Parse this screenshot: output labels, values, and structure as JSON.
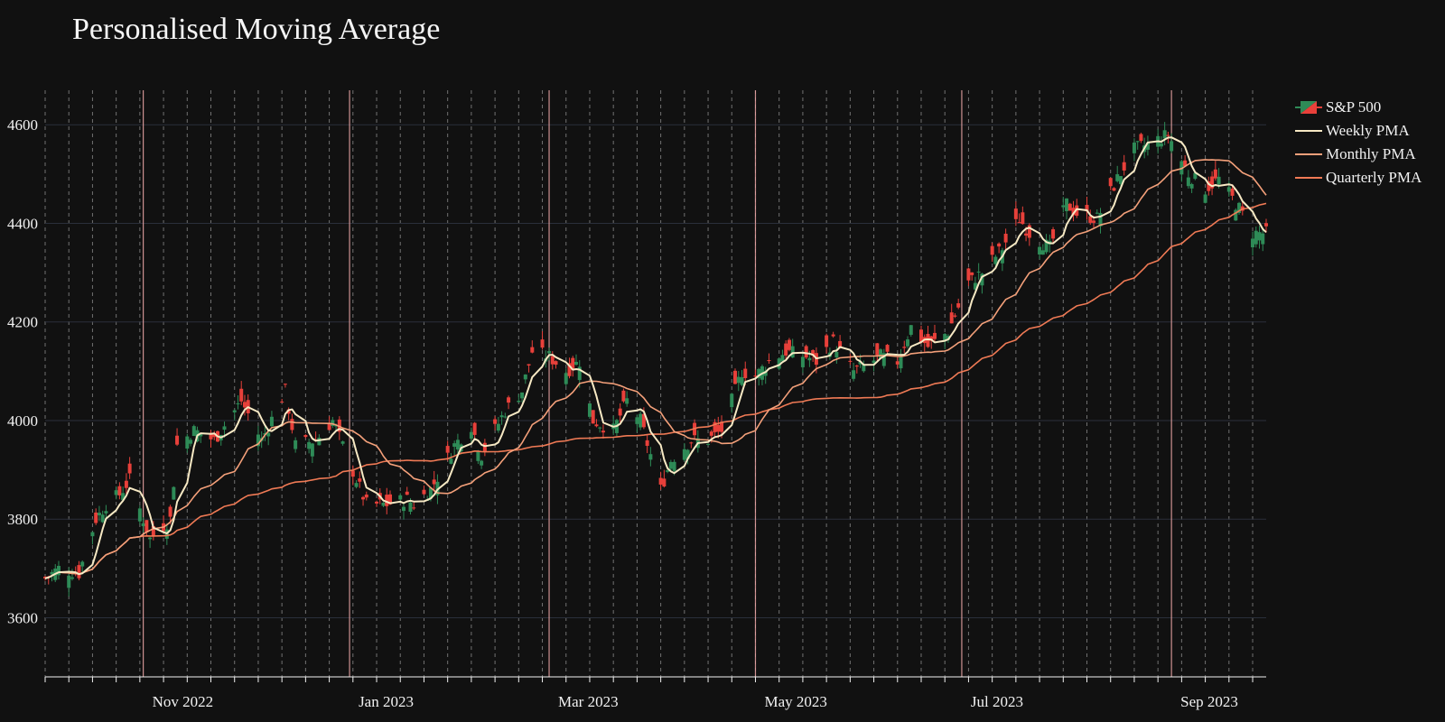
{
  "chart_data": {
    "type": "candlestick",
    "title": "Personalised Moving Average",
    "xlabel": "",
    "ylabel": "",
    "x_range": [
      "2022-10-03",
      "2023-09-29"
    ],
    "ylim": [
      3480,
      4670
    ],
    "y_ticks": [
      3600,
      3800,
      4000,
      4200,
      4400,
      4600
    ],
    "x_tick_labels": [
      "Nov 2022",
      "Jan 2023",
      "Mar 2023",
      "May 2023",
      "Jul 2023",
      "Sep 2023"
    ],
    "x_tick_dates": [
      "2022-11-01",
      "2023-01-01",
      "2023-03-01",
      "2023-05-01",
      "2023-07-01",
      "2023-09-01"
    ],
    "grid": true,
    "weekly_gridlines": "dashed, every Monday",
    "monthly_markers": "solid lines every two months",
    "legend_position": "top-right outside plot",
    "colors": {
      "background": "#111111",
      "up": "#2e8b57",
      "down": "#e8403a",
      "weekly": "#f7e9c4",
      "monthly": "#f4a07a",
      "quarterly": "#f07a55",
      "grid": "#2a2f3a",
      "month_marker": "#f0a8a8"
    },
    "series": [
      {
        "name": "S&P 500",
        "kind": "candlestick",
        "close_anchors": [
          [
            "2022-10-03",
            3680
          ],
          [
            "2022-10-07",
            3700
          ],
          [
            "2022-10-13",
            3690
          ],
          [
            "2022-10-18",
            3800
          ],
          [
            "2022-10-21",
            3830
          ],
          [
            "2022-10-25",
            3850
          ],
          [
            "2022-10-28",
            3880
          ],
          [
            "2022-11-03",
            3760
          ],
          [
            "2022-11-09",
            3800
          ],
          [
            "2022-11-11",
            3950
          ],
          [
            "2022-11-16",
            3980
          ],
          [
            "2022-11-22",
            3960
          ],
          [
            "2022-11-30",
            4040
          ],
          [
            "2022-12-06",
            3960
          ],
          [
            "2022-12-13",
            4060
          ],
          [
            "2022-12-16",
            3950
          ],
          [
            "2022-12-22",
            3960
          ],
          [
            "2022-12-27",
            4000
          ],
          [
            "2023-01-03",
            3880
          ],
          [
            "2023-01-06",
            3830
          ],
          [
            "2023-01-12",
            3830
          ],
          [
            "2023-01-18",
            3840
          ],
          [
            "2023-01-20",
            3830
          ],
          [
            "2023-01-25",
            3860
          ],
          [
            "2023-02-01",
            3950
          ],
          [
            "2023-02-06",
            3990
          ],
          [
            "2023-02-09",
            3930
          ],
          [
            "2023-02-16",
            4020
          ],
          [
            "2023-02-21",
            4060
          ],
          [
            "2023-02-24",
            4140
          ],
          [
            "2023-03-01",
            4130
          ],
          [
            "2023-03-06",
            4100
          ],
          [
            "2023-03-10",
            4120
          ],
          [
            "2023-03-14",
            4000
          ],
          [
            "2023-03-20",
            3980
          ],
          [
            "2023-03-24",
            4040
          ],
          [
            "2023-03-28",
            4000
          ],
          [
            "2023-04-03",
            3860
          ],
          [
            "2023-04-06",
            3920
          ],
          [
            "2023-04-12",
            3960
          ],
          [
            "2023-04-17",
            3960
          ],
          [
            "2023-04-21",
            3980
          ],
          [
            "2023-04-27",
            4100
          ],
          [
            "2023-05-01",
            4090
          ],
          [
            "2023-05-05",
            4120
          ],
          [
            "2023-05-10",
            4140
          ],
          [
            "2023-05-16",
            4130
          ],
          [
            "2023-05-19",
            4120
          ],
          [
            "2023-05-24",
            4160
          ],
          [
            "2023-05-30",
            4100
          ],
          [
            "2023-06-02",
            4110
          ],
          [
            "2023-06-07",
            4130
          ],
          [
            "2023-06-12",
            4120
          ],
          [
            "2023-06-16",
            4190
          ],
          [
            "2023-06-21",
            4150
          ],
          [
            "2023-06-27",
            4180
          ],
          [
            "2023-07-03",
            4280
          ],
          [
            "2023-07-07",
            4300
          ],
          [
            "2023-07-13",
            4350
          ],
          [
            "2023-07-18",
            4410
          ],
          [
            "2023-07-21",
            4380
          ],
          [
            "2023-07-27",
            4350
          ],
          [
            "2023-08-01",
            4440
          ],
          [
            "2023-08-04",
            4420
          ],
          [
            "2023-08-10",
            4410
          ],
          [
            "2023-08-16",
            4490
          ],
          [
            "2023-08-21",
            4550
          ],
          [
            "2023-08-25",
            4560
          ],
          [
            "2023-08-31",
            4580
          ],
          [
            "2023-09-06",
            4500
          ],
          [
            "2023-09-11",
            4470
          ],
          [
            "2023-09-15",
            4490
          ],
          [
            "2023-09-21",
            4430
          ],
          [
            "2023-09-25",
            4380
          ],
          [
            "2023-09-29",
            4380
          ]
        ]
      },
      {
        "name": "Weekly PMA",
        "kind": "line",
        "window_days": 5
      },
      {
        "name": "Monthly PMA",
        "kind": "line",
        "window_days": 21
      },
      {
        "name": "Quarterly PMA",
        "kind": "line",
        "window_days": 63
      }
    ]
  }
}
